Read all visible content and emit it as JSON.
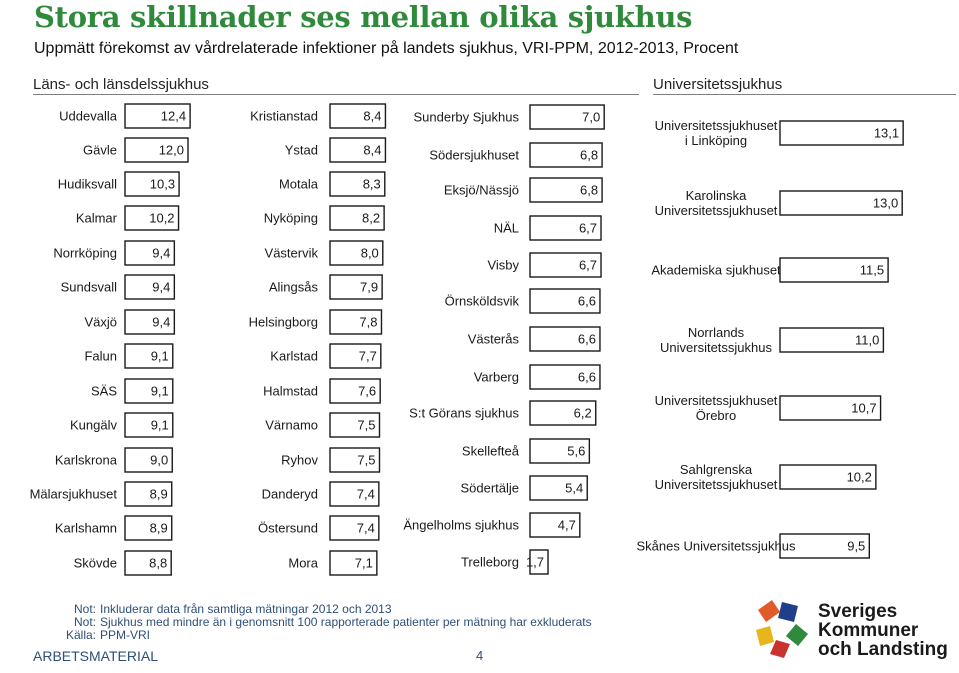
{
  "title": "Stora skillnader ses mellan olika sjukhus",
  "subtitle": "Uppmätt förekomst av vårdrelaterade infektioner på landets sjukhus, VRI-PPM, 2012-2013, Procent",
  "sections": {
    "left": "Läns- och länsdelssjukhus",
    "right": "Universitetssjukhus"
  },
  "colors": {
    "title": "#2f8a3c",
    "bar_fill": "#ffffff",
    "bar_stroke": "#1a1a1a",
    "notes": "#2e4f7a"
  },
  "chart_data": [
    {
      "type": "bar",
      "orientation": "horizontal",
      "group": "Läns- och länsdelssjukhus",
      "categories": [
        "Uddevalla",
        "Gävle",
        "Hudiksvall",
        "Kalmar",
        "Norrköping",
        "Sundsvall",
        "Växjö",
        "Falun",
        "SÄS",
        "Kungälv",
        "Karlskrona",
        "Mälarsjukhuset",
        "Karlshamn",
        "Skövde"
      ],
      "values": [
        12.4,
        12.0,
        10.3,
        10.2,
        9.4,
        9.4,
        9.4,
        9.1,
        9.1,
        9.1,
        9.0,
        8.9,
        8.9,
        8.8
      ],
      "labels": [
        "12,4",
        "12,0",
        "10,3",
        "10,2",
        "9,4",
        "9,4",
        "9,4",
        "9,1",
        "9,1",
        "9,1",
        "9,0",
        "8,9",
        "8,9",
        "8,8"
      ]
    },
    {
      "type": "bar",
      "orientation": "horizontal",
      "group": "Läns- och länsdelssjukhus",
      "categories": [
        "Kristianstad",
        "Ystad",
        "Motala",
        "Nyköping",
        "Västervik",
        "Alingsås",
        "Helsingborg",
        "Karlstad",
        "Halmstad",
        "Värnamo",
        "Ryhov",
        "Danderyd",
        "Östersund",
        "Mora"
      ],
      "values": [
        8.4,
        8.4,
        8.3,
        8.2,
        8.0,
        7.9,
        7.8,
        7.7,
        7.6,
        7.5,
        7.5,
        7.4,
        7.4,
        7.1
      ],
      "labels": [
        "8,4",
        "8,4",
        "8,3",
        "8,2",
        "8,0",
        "7,9",
        "7,8",
        "7,7",
        "7,6",
        "7,5",
        "7,5",
        "7,4",
        "7,4",
        "7,1"
      ]
    },
    {
      "type": "bar",
      "orientation": "horizontal",
      "group": "Läns- och länsdelssjukhus",
      "categories": [
        "Sunderby Sjukhus",
        "Södersjukhuset",
        "Eksjö/Nässjö",
        "NÄL",
        "Visby",
        "Örnsköldsvik",
        "Västerås",
        "Varberg",
        "S:t Görans sjukhus",
        "Skellefteå",
        "Södertälje",
        "Ängelholms sjukhus",
        "Trelleborg"
      ],
      "values": [
        7.0,
        6.8,
        6.8,
        6.7,
        6.7,
        6.6,
        6.6,
        6.6,
        6.2,
        5.6,
        5.4,
        4.7,
        1.7
      ],
      "labels": [
        "7,0",
        "6,8",
        "6,8",
        "6,7",
        "6,7",
        "6,6",
        "6,6",
        "6,6",
        "6,2",
        "5,6",
        "5,4",
        "4,7",
        "1,7"
      ]
    },
    {
      "type": "bar",
      "orientation": "horizontal",
      "group": "Universitetssjukhus",
      "categories": [
        [
          "Universitetssjukhuset",
          "i Linköping"
        ],
        [
          "Karolinska",
          "Universitetssjukhuset"
        ],
        [
          "Akademiska sjukhuset"
        ],
        [
          "Norrlands",
          "Universitetssjukhus"
        ],
        [
          "Universitetssjukhuset",
          "Örebro"
        ],
        [
          "Sahlgrenska",
          "Universitetssjukhuset"
        ],
        [
          "Skånes Universitetssjukhus"
        ]
      ],
      "values": [
        13.1,
        13.0,
        11.5,
        11.0,
        10.7,
        10.2,
        9.5
      ],
      "labels": [
        "13,1",
        "13,0",
        "11,5",
        "11,0",
        "10,7",
        "10,2",
        "9,5"
      ]
    }
  ],
  "notes": [
    {
      "key": "Not:",
      "text": "Inkluderar data från samtliga mätningar 2012 och 2013"
    },
    {
      "key": "Not:",
      "text": "Sjukhus med mindre än i genomsnitt 100 rapporterade patienter per mätning har exkluderats"
    },
    {
      "key": "Källa:",
      "text": "PPM-VRI"
    }
  ],
  "footer": {
    "label": "ARBETSMATERIAL",
    "page": "4"
  },
  "logo": {
    "lines": [
      "Sveriges",
      "Kommuner",
      "och Landsting"
    ]
  }
}
